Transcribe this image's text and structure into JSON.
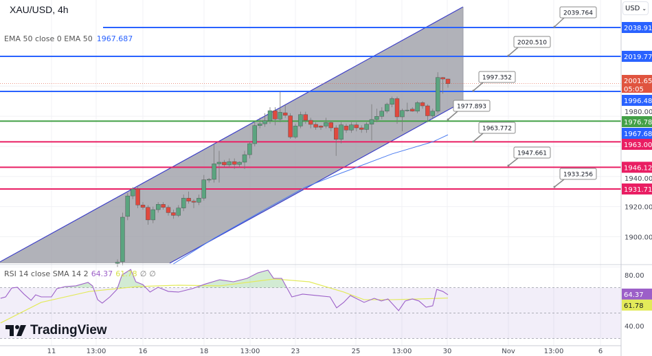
{
  "header": {
    "symbol_title": "XAU/USD, 4h",
    "currency_button": "USD"
  },
  "ema_legend": {
    "label": "EMA 50 close 0 EMA 50",
    "value": "1967.687"
  },
  "rsi_legend": {
    "label": "RSI 14 close SMA 14 2",
    "rsi_value": "64.37",
    "sma_value": "61.78",
    "extra1": "∅",
    "extra2": "∅"
  },
  "logo": {
    "text": "TradingView"
  },
  "colors": {
    "up": "#5ba47f",
    "down": "#e0493e",
    "blue_level": "#2962ff",
    "green_level": "#43a047",
    "pink_level": "#e91e63",
    "ema": "#4a7bf0",
    "rsi": "#9c5fc8",
    "rsi_sma": "#e3ea5a",
    "channel_line": "#3d3fc8",
    "channel_fill": "#9b9ca5",
    "current_price": "#e0543f"
  },
  "price_axis": {
    "ticks": [
      "1900.000",
      "1920.000",
      "1940.000",
      "1980.000"
    ],
    "tick_values": [
      1900,
      1920,
      1940,
      1980
    ],
    "current_price": {
      "value": "2001.655",
      "countdown": "05:05"
    },
    "ema_tag": "1967.687"
  },
  "levels": [
    {
      "value": "2038.912",
      "color": "blue"
    },
    {
      "value": "2019.772",
      "color": "blue"
    },
    {
      "value": "1996.484",
      "color": "blue"
    },
    {
      "value": "1976.782",
      "color": "green"
    },
    {
      "value": "1963.000",
      "color": "pink"
    },
    {
      "value": "1946.129",
      "color": "pink"
    },
    {
      "value": "1931.713",
      "color": "pink"
    }
  ],
  "callouts": [
    "2039.764",
    "2020.510",
    "1997.352",
    "1977.893",
    "1963.772",
    "1947.661",
    "1933.256"
  ],
  "rsi_axis": {
    "ticks": [
      "80.00",
      "40.00"
    ],
    "rsi_tag": "64.37",
    "sma_tag": "61.78"
  },
  "time_axis": [
    "11",
    "13:00",
    "16",
    "18",
    "13:00",
    "23",
    "25",
    "13:00",
    "30",
    "Nov",
    "13:00",
    "6"
  ],
  "chart_data": {
    "type": "candlestick",
    "candles_ohlc": [
      [
        1882.3,
        1885,
        1880,
        1883.1
      ],
      [
        1883.4,
        1916,
        1881,
        1913.0
      ],
      [
        1913.5,
        1929,
        1911,
        1927.1
      ],
      [
        1927.1,
        1933,
        1925,
        1931.7
      ],
      [
        1931.7,
        1933,
        1919,
        1921.1
      ],
      [
        1921.1,
        1923,
        1918,
        1919.5
      ],
      [
        1919.5,
        1921,
        1908,
        1911.2
      ],
      [
        1911.2,
        1920,
        1909,
        1918.0
      ],
      [
        1918.0,
        1923,
        1916,
        1921.5
      ],
      [
        1921.5,
        1923,
        1918,
        1919.5
      ],
      [
        1919.5,
        1921,
        1914,
        1916.0
      ],
      [
        1916.0,
        1918,
        1912,
        1914.2
      ],
      [
        1914.2,
        1921,
        1913,
        1919.1
      ],
      [
        1919.1,
        1928,
        1917,
        1925.6
      ],
      [
        1925.6,
        1930,
        1922,
        1923.6
      ],
      [
        1923.6,
        1925,
        1919,
        1922.9
      ],
      [
        1922.9,
        1928,
        1921,
        1925.6
      ],
      [
        1925.6,
        1941,
        1924,
        1937.8
      ],
      [
        1937.8,
        1939,
        1936,
        1938.1
      ],
      [
        1938.1,
        1962,
        1936,
        1948.4
      ],
      [
        1948.4,
        1957,
        1936,
        1949.5
      ],
      [
        1949.5,
        1951,
        1946,
        1947.7
      ],
      [
        1947.7,
        1952,
        1946,
        1949.9
      ],
      [
        1949.9,
        1952,
        1945,
        1948.0
      ],
      [
        1948.0,
        1950,
        1946,
        1949.5
      ],
      [
        1949.5,
        1957,
        1945,
        1954.5
      ],
      [
        1954.5,
        1963,
        1952,
        1961.8
      ],
      [
        1961.8,
        1976,
        1960,
        1973.8
      ],
      [
        1973.8,
        1979,
        1972,
        1975.0
      ],
      [
        1975.0,
        1982,
        1973,
        1977.0
      ],
      [
        1977.0,
        1986,
        1975,
        1983.7
      ],
      [
        1983.7,
        1986,
        1974,
        1978.1
      ],
      [
        1978.1,
        1996.3,
        1976,
        1982.6
      ],
      [
        1982.3,
        1988,
        1979,
        1980.6
      ],
      [
        1980.3,
        1982,
        1965,
        1966.2
      ],
      [
        1966.2,
        1975,
        1965,
        1973.5
      ],
      [
        1973.5,
        1983,
        1972,
        1981.1
      ],
      [
        1981.1,
        1983,
        1975,
        1977.3
      ],
      [
        1977.3,
        1979,
        1972,
        1974.6
      ],
      [
        1974.6,
        1976,
        1971,
        1972.7
      ],
      [
        1973.5,
        1974,
        1971,
        1972.7
      ],
      [
        1973.5,
        1979,
        1972,
        1975.8
      ],
      [
        1975.8,
        1977,
        1970,
        1972.3
      ],
      [
        1972.3,
        1974,
        1953.7,
        1964.7
      ],
      [
        1964.7,
        1976,
        1962,
        1974.3
      ],
      [
        1973.5,
        1975,
        1969,
        1970.8
      ],
      [
        1970.8,
        1976,
        1969,
        1974.3
      ],
      [
        1974.3,
        1976,
        1970,
        1972.3
      ],
      [
        1972.3,
        1974,
        1969,
        1971.2
      ],
      [
        1971.2,
        1976,
        1969,
        1974.7
      ],
      [
        1974.7,
        1988,
        1964,
        1977.8
      ],
      [
        1977.8,
        1985,
        1976,
        1979.9
      ],
      [
        1979.9,
        1986,
        1978,
        1983.4
      ],
      [
        1983.4,
        1989,
        1982,
        1987.9
      ],
      [
        1987.9,
        1993,
        1986,
        1991.7
      ],
      [
        1991.7,
        1993,
        1975,
        1979.6
      ],
      [
        1979.6,
        1985,
        1970,
        1983.8
      ],
      [
        1983.8,
        1989,
        1983,
        1984.1
      ],
      [
        1984.7,
        1986,
        1983,
        1983.4
      ],
      [
        1983.4,
        1990,
        1982,
        1989.0
      ],
      [
        1989.0,
        1990,
        1985,
        1986.9
      ],
      [
        1986.9,
        1988,
        1976,
        1980.3
      ],
      [
        1980.3,
        1985,
        1978,
        1983.4
      ],
      [
        1983.4,
        2009.2,
        1982,
        2005.7
      ],
      [
        2005.7,
        2006,
        1995,
        2004.7
      ],
      [
        2004.7,
        2005,
        1999,
        2001.655
      ]
    ],
    "ema50": [
      [
        11,
        1882
      ],
      [
        19,
        1899
      ],
      [
        30,
        1920
      ],
      [
        37,
        1933
      ],
      [
        43,
        1941
      ],
      [
        54,
        1955
      ],
      [
        62,
        1963
      ],
      [
        65,
        1967.687
      ]
    ],
    "rsi": [
      [
        -23,
        61.6
      ],
      [
        -22,
        62.7
      ],
      [
        -20.8,
        69.7
      ],
      [
        -19.7,
        70.3
      ],
      [
        -18.4,
        64.9
      ],
      [
        -17,
        60
      ],
      [
        -16.1,
        64.3
      ],
      [
        -15,
        62.7
      ],
      [
        -13,
        62.7
      ],
      [
        -11.9,
        69.2
      ],
      [
        -10.3,
        70.8
      ],
      [
        -8.2,
        71.4
      ],
      [
        -5.8,
        74.1
      ],
      [
        -4.9,
        71.4
      ],
      [
        -3.9,
        60.5
      ],
      [
        -3,
        57.8
      ],
      [
        -1.5,
        62.7
      ],
      [
        -0.1,
        68.6
      ],
      [
        0.9,
        80
      ],
      [
        2.6,
        84.3
      ],
      [
        3.6,
        74.6
      ],
      [
        5,
        72.4
      ],
      [
        6.4,
        66.5
      ],
      [
        8,
        70.3
      ],
      [
        10,
        67
      ],
      [
        12,
        66.5
      ],
      [
        14.7,
        69.2
      ],
      [
        17.4,
        73
      ],
      [
        20.1,
        76.2
      ],
      [
        22.8,
        74.6
      ],
      [
        25.5,
        77.3
      ],
      [
        27.6,
        81.6
      ],
      [
        29.6,
        83.8
      ],
      [
        30.7,
        77.3
      ],
      [
        32.3,
        77.3
      ],
      [
        34.3,
        62.7
      ],
      [
        36.4,
        64.9
      ],
      [
        39.1,
        63.8
      ],
      [
        41.8,
        62.7
      ],
      [
        43.1,
        54.1
      ],
      [
        44.5,
        58.4
      ],
      [
        45.8,
        63.8
      ],
      [
        48.5,
        58.4
      ],
      [
        50.5,
        61.6
      ],
      [
        51.9,
        59.5
      ],
      [
        53.2,
        61.1
      ],
      [
        55.3,
        51.9
      ],
      [
        56.6,
        59.5
      ],
      [
        58,
        61.1
      ],
      [
        59.3,
        59.5
      ],
      [
        60.7,
        54.6
      ],
      [
        62,
        55.7
      ],
      [
        62.8,
        68.6
      ],
      [
        64,
        67
      ],
      [
        65,
        64.37
      ]
    ],
    "rsi_sma": [
      [
        -23,
        42.2
      ],
      [
        -15,
        58.4
      ],
      [
        -5.5,
        67
      ],
      [
        3.9,
        70.8
      ],
      [
        12,
        71.9
      ],
      [
        20.1,
        71.4
      ],
      [
        30.9,
        76.8
      ],
      [
        37.7,
        74.6
      ],
      [
        44.5,
        66.5
      ],
      [
        48.5,
        60.5
      ],
      [
        53.9,
        60.5
      ],
      [
        59.3,
        61.1
      ],
      [
        65,
        61.78
      ]
    ],
    "rsi_bands": [
      70,
      50,
      30
    ],
    "price_range": [
      1882,
      2045
    ],
    "rsi_range": [
      30,
      88
    ]
  }
}
